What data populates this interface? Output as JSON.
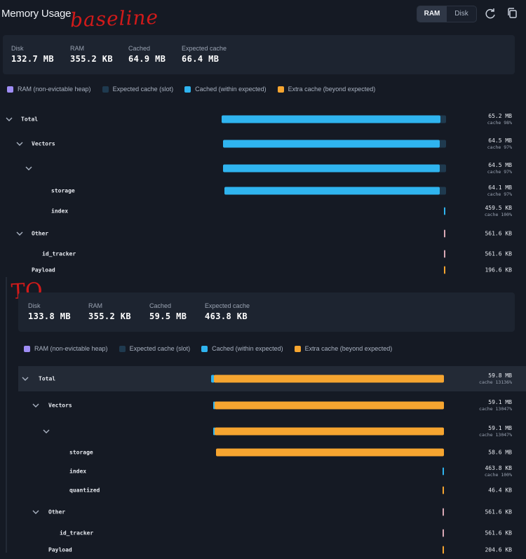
{
  "header": {
    "title": "Memory Usage",
    "annotation": "baseline",
    "tabs": [
      {
        "label": "RAM",
        "active": true
      },
      {
        "label": "Disk",
        "active": false
      }
    ],
    "icons": [
      "refresh-icon",
      "copy-icon"
    ]
  },
  "legend": [
    {
      "label": "RAM (non-evictable heap)",
      "color": "#9f8df5"
    },
    {
      "label": "Expected cache (slot)",
      "color": "#1f3a4f"
    },
    {
      "label": "Cached (within expected)",
      "color": "#2fb4ef"
    },
    {
      "label": "Extra cache (beyond expected)",
      "color": "#f6a530"
    }
  ],
  "baseline": {
    "stats": [
      {
        "label": "Disk",
        "value": "132.7 MB"
      },
      {
        "label": "RAM",
        "value": "355.2 KB"
      },
      {
        "label": "Cached",
        "value": "64.9 MB"
      },
      {
        "label": "Expected cache",
        "value": "66.4 MB"
      }
    ],
    "rows": [
      {
        "name": "Total",
        "value": "65.2 MB",
        "cache": "cache 98%",
        "chevron": true
      },
      {
        "name": "Vectors",
        "value": "64.5 MB",
        "cache": "cache 97%",
        "chevron": true
      },
      {
        "name": "",
        "value": "64.5 MB",
        "cache": "cache 97%",
        "chevron": true
      },
      {
        "name": "storage",
        "value": "64.1 MB",
        "cache": "cache 97%",
        "chevron": false
      },
      {
        "name": "index",
        "value": "459.5 KB",
        "cache": "cache 100%",
        "chevron": false
      },
      {
        "name": "Other",
        "value": "561.6 KB",
        "cache": "",
        "chevron": true
      },
      {
        "name": "id_tracker",
        "value": "561.6 KB",
        "cache": "",
        "chevron": false
      },
      {
        "name": "Payload",
        "value": "196.6 KB",
        "cache": "",
        "chevron": false
      }
    ]
  },
  "tq": {
    "annotation": "TQ",
    "stats": [
      {
        "label": "Disk",
        "value": "133.8 MB"
      },
      {
        "label": "RAM",
        "value": "355.2 KB"
      },
      {
        "label": "Cached",
        "value": "59.5 MB"
      },
      {
        "label": "Expected cache",
        "value": "463.8 KB"
      }
    ],
    "rows": [
      {
        "name": "Total",
        "value": "59.8 MB",
        "cache": "cache 13136%",
        "chevron": true
      },
      {
        "name": "Vectors",
        "value": "59.1 MB",
        "cache": "cache 13047%",
        "chevron": true
      },
      {
        "name": "",
        "value": "59.1 MB",
        "cache": "cache 13047%",
        "chevron": true
      },
      {
        "name": "storage",
        "value": "58.6 MB",
        "cache": "",
        "chevron": false
      },
      {
        "name": "index",
        "value": "463.8 KB",
        "cache": "cache 100%",
        "chevron": false
      },
      {
        "name": "quantized",
        "value": "46.4 KB",
        "cache": "",
        "chevron": false
      },
      {
        "name": "Other",
        "value": "561.6 KB",
        "cache": "",
        "chevron": true
      },
      {
        "name": "id_tracker",
        "value": "561.6 KB",
        "cache": "",
        "chevron": false
      },
      {
        "name": "Payload",
        "value": "204.6 KB",
        "cache": "",
        "chevron": false
      }
    ]
  }
}
